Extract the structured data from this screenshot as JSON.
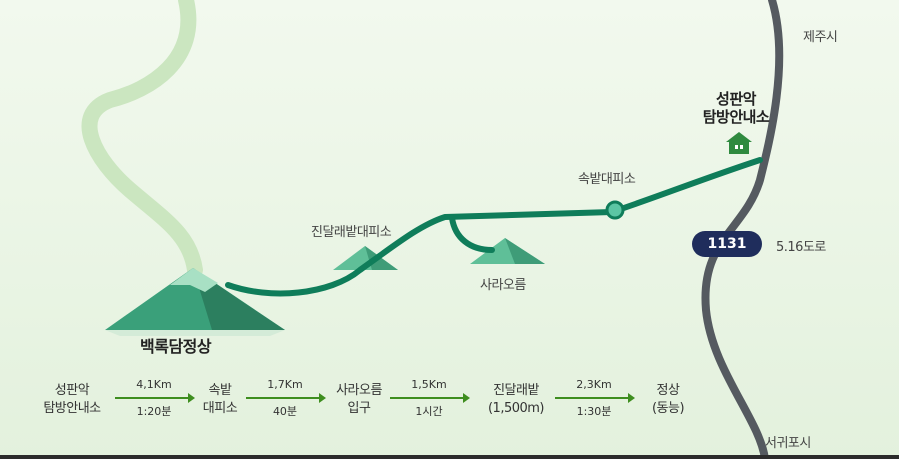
{
  "map": {
    "places": {
      "jeju_si": "제주시",
      "seogwipo_si": "서귀포시",
      "seongpanak_line1": "성판악",
      "seongpanak_line2": "탐방안내소",
      "sokbat": "속밭대피소",
      "jindallae": "진달래밭대피소",
      "sarareum": "사라오름",
      "baengnokdam": "백록담정상"
    },
    "road": {
      "number": "1131",
      "name": "5.16도로"
    },
    "colors": {
      "trail": "#0f7d5a",
      "road": "#555a60",
      "road_badge": "#1f2d5c",
      "background": "#eef7ea"
    },
    "icons": [
      "house-icon",
      "waypoint-circle-icon",
      "mountain-peak-icon"
    ]
  },
  "route": {
    "stops": [
      {
        "line1": "성판악",
        "line2": "탐방안내소"
      },
      {
        "line1": "속밭",
        "line2": "대피소"
      },
      {
        "line1": "사라오름",
        "line2": "입구"
      },
      {
        "line1": "진달래밭",
        "line2": "(1,500m)"
      },
      {
        "line1": "정상",
        "line2": "(동능)"
      }
    ],
    "segments": [
      {
        "distance": "4,1Km",
        "time": "1:20분"
      },
      {
        "distance": "1,7Km",
        "time": "40분"
      },
      {
        "distance": "1,5Km",
        "time": "1시간"
      },
      {
        "distance": "2,3Km",
        "time": "1:30분"
      }
    ]
  }
}
